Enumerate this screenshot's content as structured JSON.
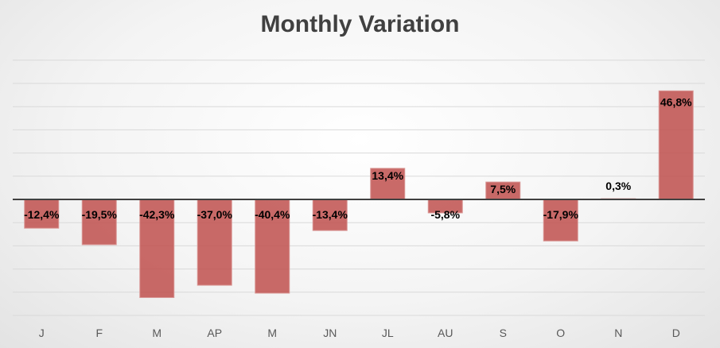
{
  "chart_data": {
    "type": "bar",
    "title": "Monthly Variation",
    "categories": [
      "J",
      "F",
      "M",
      "AP",
      "M",
      "JN",
      "JL",
      "AU",
      "S",
      "O",
      "N",
      "D"
    ],
    "values": [
      -12.4,
      -19.5,
      -42.3,
      -37.0,
      -40.4,
      -13.4,
      13.4,
      -5.8,
      7.5,
      -17.9,
      0.3,
      46.8
    ],
    "data_labels": [
      "-12,4%",
      "-19,5%",
      "-42,3%",
      "-37,0%",
      "-40,4%",
      "-13,4%",
      "13,4%",
      "-5,8%",
      "7,5%",
      "-17,9%",
      "0,3%",
      "46,8%"
    ],
    "ylim": [
      -50,
      60
    ],
    "grid": true,
    "bar_color": "#c0504d"
  }
}
